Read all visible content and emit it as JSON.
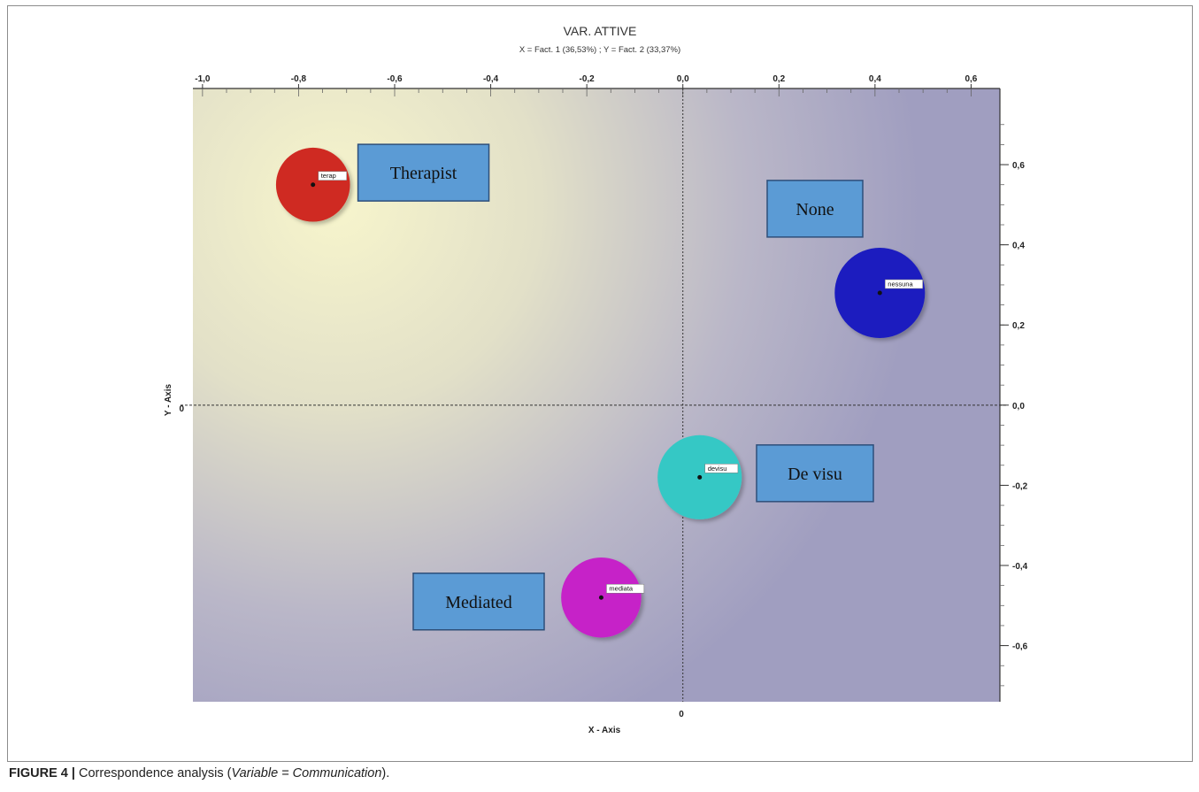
{
  "caption": {
    "label": "FIGURE 4 |",
    "text_before": " Correspondence analysis (",
    "italic": "Variable = Communication",
    "text_after": ")."
  },
  "chart_data": {
    "type": "scatter",
    "title": "VAR. ATTIVE",
    "subtitle": "X = Fact. 1 (36,53%) ; Y = Fact. 2 (33,37%)",
    "xlabel": "X - Axis",
    "ylabel": "Y - Axis",
    "xlim": [
      -1.02,
      0.66
    ],
    "ylim": [
      -0.74,
      0.79
    ],
    "x_ticks": [
      -1.0,
      -0.8,
      -0.6,
      -0.4,
      -0.2,
      0.0,
      0.2,
      0.4,
      0.6
    ],
    "x_tick_labels": [
      "-1,0",
      "-0,8",
      "-0,6",
      "-0,4",
      "-0,2",
      "0,0",
      "0,2",
      "0,4",
      "0,6"
    ],
    "y_ticks": [
      0.6,
      0.4,
      0.2,
      0.0,
      -0.2,
      -0.4,
      -0.6
    ],
    "y_tick_labels": [
      "0,6",
      "0,4",
      "0,2",
      "0,0",
      "-0,2",
      "-0,4",
      "-0,6"
    ],
    "x_zero_label": "0",
    "y_zero_label": "0",
    "grid": false,
    "points": [
      {
        "label": "terap",
        "x": -0.77,
        "y": 0.55,
        "size": 0.6,
        "color": "#cf2c22"
      },
      {
        "label": "nessuna",
        "x": 0.41,
        "y": 0.28,
        "size": 1.0,
        "color": "#1a1fbf"
      },
      {
        "label": "devisu",
        "x": 0.035,
        "y": -0.18,
        "size": 0.85,
        "color": "#35c8c5"
      },
      {
        "label": "mediata",
        "x": -0.17,
        "y": -0.48,
        "size": 0.75,
        "color": "#c623c8"
      }
    ],
    "annotations": [
      {
        "text": "Therapist",
        "x": -0.54,
        "y": 0.58
      },
      {
        "text": "None",
        "x": 0.275,
        "y": 0.49
      },
      {
        "text": "De visu",
        "x": 0.275,
        "y": -0.17
      },
      {
        "text": "Mediated",
        "x": -0.425,
        "y": -0.49
      }
    ]
  }
}
